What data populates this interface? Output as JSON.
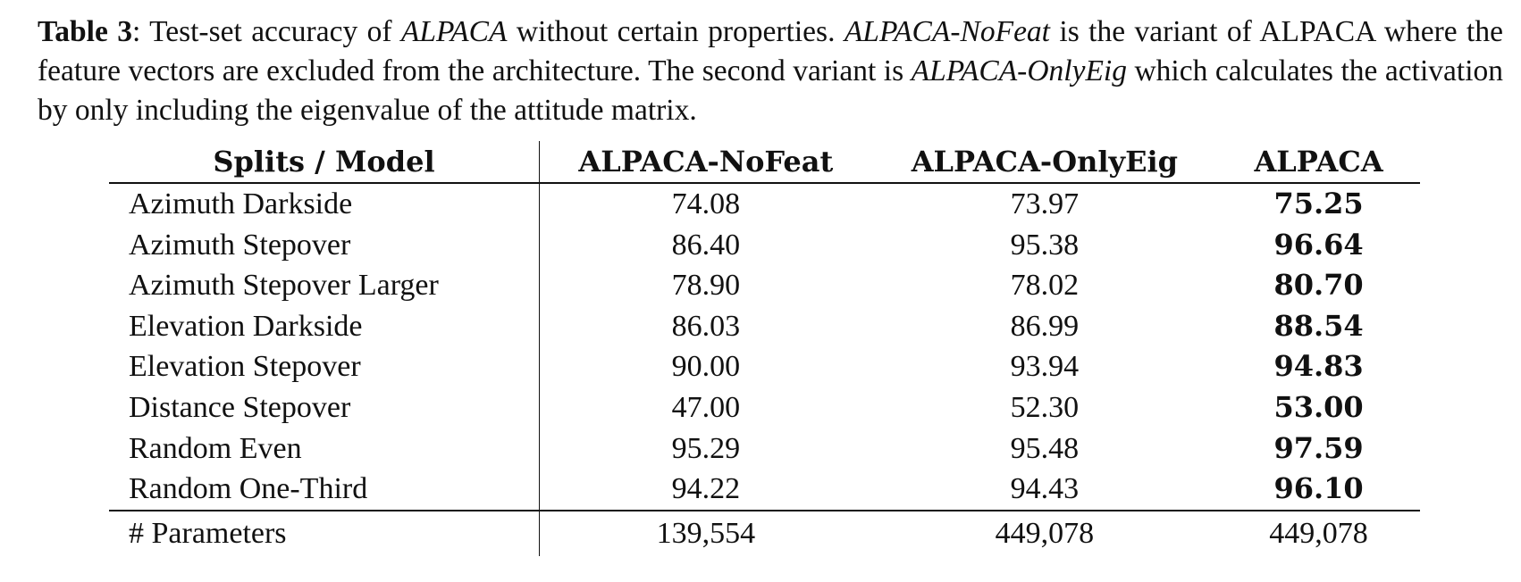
{
  "caption": {
    "label": "Table 3",
    "part1": ": Test-set accuracy of ",
    "model_italic": "ALPACA",
    "part2": " without certain properties. ",
    "variant1": "ALPACA-NoFeat",
    "part3": " is the variant of ALPACA where the feature vectors are excluded from the architecture. The second variant is ",
    "variant2": "ALPACA-OnlyEig",
    "part4": " which calculates the activation by only including the eigenvalue of the attitude matrix."
  },
  "table": {
    "headers": [
      "Splits / Model",
      "ALPACA-NoFeat",
      "ALPACA-OnlyEig",
      "ALPACA"
    ],
    "rows": [
      {
        "split": "Azimuth Darkside",
        "nofeat": "74.08",
        "onlyeig": "73.97",
        "alpaca": "75.25"
      },
      {
        "split": "Azimuth Stepover",
        "nofeat": "86.40",
        "onlyeig": "95.38",
        "alpaca": "96.64"
      },
      {
        "split": "Azimuth Stepover Larger",
        "nofeat": "78.90",
        "onlyeig": "78.02",
        "alpaca": "80.70"
      },
      {
        "split": "Elevation Darkside",
        "nofeat": "86.03",
        "onlyeig": "86.99",
        "alpaca": "88.54"
      },
      {
        "split": "Elevation Stepover",
        "nofeat": "90.00",
        "onlyeig": "93.94",
        "alpaca": "94.83"
      },
      {
        "split": "Distance Stepover",
        "nofeat": "47.00",
        "onlyeig": "52.30",
        "alpaca": "53.00"
      },
      {
        "split": "Random Even",
        "nofeat": "95.29",
        "onlyeig": "95.48",
        "alpaca": "97.59"
      },
      {
        "split": "Random One-Third",
        "nofeat": "94.22",
        "onlyeig": "94.43",
        "alpaca": "96.10"
      }
    ],
    "params_row": {
      "split": "# Parameters",
      "nofeat": "139,554",
      "onlyeig": "449,078",
      "alpaca": "449,078"
    }
  }
}
